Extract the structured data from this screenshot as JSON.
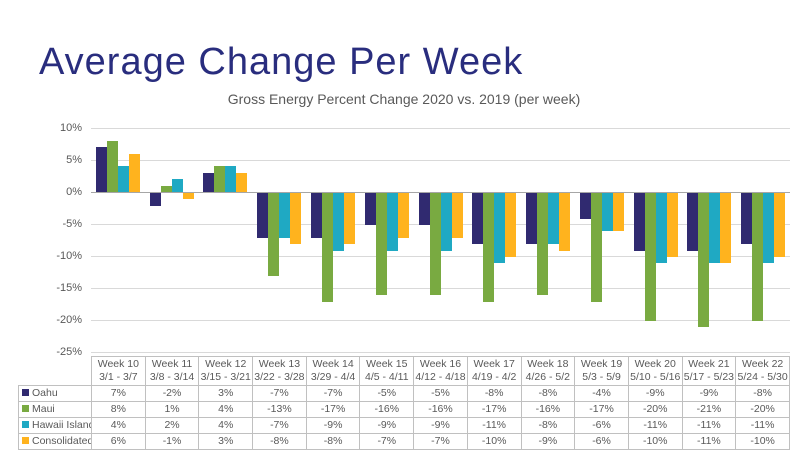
{
  "slide": {
    "title": "Average Change Per Week",
    "title_color": "#292D7E",
    "background_color": "#FFFFFF"
  },
  "chart_data": {
    "type": "bar",
    "title": "Gross Energy Percent Change 2020 vs. 2019 (per week)",
    "categories": [
      "Week 10",
      "Week 11",
      "Week 12",
      "Week 13",
      "Week 14",
      "Week 15",
      "Week 16",
      "Week 17",
      "Week 18",
      "Week 19",
      "Week 20",
      "Week 21",
      "Week 22"
    ],
    "category_dates": [
      "3/1 - 3/7",
      "3/8 - 3/14",
      "3/15 - 3/21",
      "3/22 - 3/28",
      "3/29 - 4/4",
      "4/5 - 4/11",
      "4/12 - 4/18",
      "4/19 - 4/2",
      "4/26 - 5/2",
      "5/3 - 5/9",
      "5/10 - 5/16",
      "5/17 - 5/23",
      "5/24 - 5/30"
    ],
    "series": [
      {
        "name": "Oahu",
        "color": "#302A70",
        "values": [
          7,
          -2,
          3,
          -7,
          -7,
          -5,
          -5,
          -8,
          -8,
          -4,
          -9,
          -9,
          -8
        ]
      },
      {
        "name": "Maui",
        "color": "#79AA41",
        "values": [
          8,
          1,
          4,
          -13,
          -17,
          -16,
          -16,
          -17,
          -16,
          -17,
          -20,
          -21,
          -20
        ]
      },
      {
        "name": "Hawaii Island",
        "color": "#1FA9C3",
        "values": [
          4,
          2,
          4,
          -7,
          -9,
          -9,
          -9,
          -11,
          -8,
          -6,
          -11,
          -11,
          -11
        ]
      },
      {
        "name": "Consolidated",
        "color": "#FFB31E",
        "values": [
          6,
          -1,
          3,
          -8,
          -8,
          -7,
          -7,
          -10,
          -9,
          -6,
          -10,
          -11,
          -10
        ]
      }
    ],
    "ylim": [
      -25,
      10
    ],
    "ytick_step": 5,
    "value_suffix": "%",
    "grid": true,
    "gridline_color": "#D9D9D9",
    "zero_line_color": "#A6A6A6",
    "legend_position": "table-left-column",
    "xlabel": "",
    "ylabel": ""
  }
}
